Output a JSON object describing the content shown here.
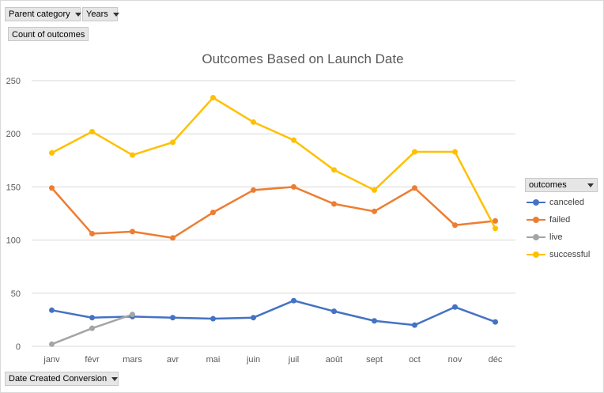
{
  "filters": {
    "parent_category": "Parent category",
    "years": "Years",
    "value_field": "Count of outcomes",
    "axis_field": "Date Created Conversion"
  },
  "legend": {
    "title": "outcomes"
  },
  "colors": {
    "canceled": "#4472c4",
    "failed": "#ed7d31",
    "live": "#a5a5a5",
    "successful": "#ffc000",
    "grid": "#d9d9d9",
    "axis_text": "#595959",
    "title_text": "#595959"
  },
  "chart_data": {
    "type": "line",
    "title": "Outcomes Based on Launch Date",
    "xlabel": "",
    "ylabel": "",
    "ylim": [
      0,
      250
    ],
    "yticks": [
      0,
      50,
      100,
      150,
      200,
      250
    ],
    "grid": true,
    "legend_position": "right",
    "categories": [
      "janv",
      "févr",
      "mars",
      "avr",
      "mai",
      "juin",
      "juil",
      "août",
      "sept",
      "oct",
      "nov",
      "déc"
    ],
    "series": [
      {
        "name": "canceled",
        "values": [
          34,
          27,
          28,
          27,
          26,
          27,
          43,
          33,
          24,
          20,
          37,
          23
        ]
      },
      {
        "name": "failed",
        "values": [
          149,
          106,
          108,
          102,
          126,
          147,
          150,
          134,
          127,
          149,
          114,
          118
        ]
      },
      {
        "name": "live",
        "values": [
          2,
          17,
          30,
          null,
          null,
          null,
          null,
          null,
          null,
          null,
          null,
          null
        ]
      },
      {
        "name": "successful",
        "values": [
          182,
          202,
          180,
          192,
          234,
          211,
          194,
          166,
          147,
          183,
          183,
          111
        ]
      }
    ]
  }
}
